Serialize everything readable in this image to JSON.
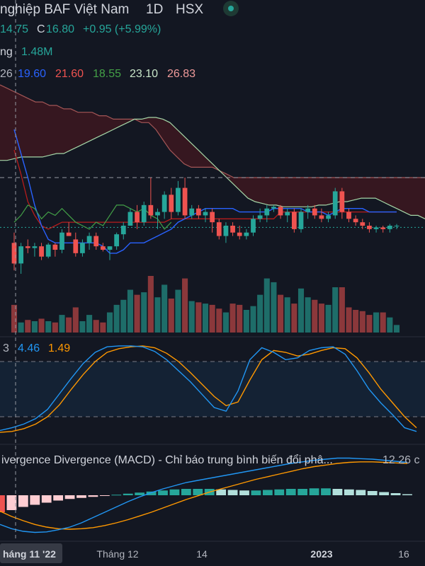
{
  "header": {
    "title": "nghiệp BAF Việt Nam · 1D · HSX",
    "title_parts": [
      "nghiệp BAF Việt Nam",
      "1D",
      "HSX"
    ],
    "status_dot_color": "#26a69a",
    "ohlc": {
      "o_tail": "14.75",
      "c_label": "C",
      "c_value": "16.80",
      "change": "+0.95 (+5.99%)"
    },
    "volume": {
      "label_tail": "ng",
      "value": "1.48M"
    },
    "ichimoku": {
      "first_tail": "26",
      "values": [
        "19.60",
        "21.60",
        "18.55",
        "23.10",
        "26.83"
      ]
    }
  },
  "stoch_legend": {
    "first_tail": "3",
    "k": "4.46",
    "d": "1.49"
  },
  "macd_legend": {
    "title": "ivergence Divergence (MACD) - Chỉ báo trung bình biến đổi phâ...",
    "params": "12 26 c"
  },
  "time_axis": {
    "cursor_label": "háng 11 '22",
    "labels": [
      "Tháng 12",
      "14",
      "2023",
      "16"
    ]
  },
  "colors": {
    "up": "#26a69a",
    "down": "#ef5350",
    "tenkan": "#2962ff",
    "kijun": "#b71c1c",
    "chikou": "#43a047",
    "spanA": "#a5d6a7",
    "spanB": "#ef9a9a"
  },
  "chart_data": [
    {
      "type": "candlestick",
      "title": "BAF · 1D · HSX",
      "x_labels": [
        "Tháng 12",
        "14",
        "2023",
        "16"
      ],
      "ylim": [
        12.0,
        19.0
      ],
      "candles": [
        {
          "o": 14.3,
          "h": 14.6,
          "l": 13.5,
          "c": 13.7
        },
        {
          "o": 13.7,
          "h": 14.3,
          "l": 13.4,
          "c": 14.2
        },
        {
          "o": 14.2,
          "h": 14.4,
          "l": 14.0,
          "c": 14.15
        },
        {
          "o": 14.15,
          "h": 14.3,
          "l": 13.9,
          "c": 14.2
        },
        {
          "o": 14.2,
          "h": 14.3,
          "l": 13.8,
          "c": 13.9
        },
        {
          "o": 13.9,
          "h": 14.3,
          "l": 13.85,
          "c": 14.25
        },
        {
          "o": 14.25,
          "h": 14.3,
          "l": 13.9,
          "c": 14.1
        },
        {
          "o": 14.1,
          "h": 14.7,
          "l": 14.0,
          "c": 14.6
        },
        {
          "o": 14.6,
          "h": 14.9,
          "l": 14.5,
          "c": 14.5
        },
        {
          "o": 14.4,
          "h": 14.6,
          "l": 13.9,
          "c": 14.0
        },
        {
          "o": 14.0,
          "h": 14.4,
          "l": 13.9,
          "c": 14.3
        },
        {
          "o": 14.3,
          "h": 14.6,
          "l": 14.1,
          "c": 14.5
        },
        {
          "o": 14.5,
          "h": 14.6,
          "l": 14.1,
          "c": 14.2
        },
        {
          "o": 14.2,
          "h": 14.3,
          "l": 14.05,
          "c": 14.1
        },
        {
          "o": 14.1,
          "h": 14.2,
          "l": 13.8,
          "c": 14.2
        },
        {
          "o": 14.2,
          "h": 14.6,
          "l": 14.1,
          "c": 14.55
        },
        {
          "o": 14.55,
          "h": 14.9,
          "l": 14.4,
          "c": 14.8
        },
        {
          "o": 14.8,
          "h": 15.3,
          "l": 14.8,
          "c": 15.2
        },
        {
          "o": 15.2,
          "h": 15.4,
          "l": 14.7,
          "c": 14.9
        },
        {
          "o": 14.9,
          "h": 15.5,
          "l": 14.8,
          "c": 15.4
        },
        {
          "o": 15.4,
          "h": 16.2,
          "l": 15.0,
          "c": 15.1
        },
        {
          "o": 15.1,
          "h": 15.3,
          "l": 14.7,
          "c": 15.2
        },
        {
          "o": 15.2,
          "h": 15.8,
          "l": 15.0,
          "c": 15.7
        },
        {
          "o": 15.7,
          "h": 15.9,
          "l": 15.0,
          "c": 15.2
        },
        {
          "o": 15.2,
          "h": 16.1,
          "l": 15.1,
          "c": 15.9
        },
        {
          "o": 15.9,
          "h": 16.2,
          "l": 15.0,
          "c": 15.1
        },
        {
          "o": 15.1,
          "h": 15.4,
          "l": 15.0,
          "c": 15.3
        },
        {
          "o": 15.3,
          "h": 15.4,
          "l": 15.0,
          "c": 15.1
        },
        {
          "o": 15.1,
          "h": 15.3,
          "l": 14.9,
          "c": 15.2
        },
        {
          "o": 15.2,
          "h": 15.3,
          "l": 14.6,
          "c": 14.9
        },
        {
          "o": 14.9,
          "h": 15.0,
          "l": 14.4,
          "c": 14.5
        },
        {
          "o": 14.5,
          "h": 14.9,
          "l": 14.3,
          "c": 14.8
        },
        {
          "o": 14.8,
          "h": 14.9,
          "l": 14.5,
          "c": 14.6
        },
        {
          "o": 14.6,
          "h": 14.8,
          "l": 14.4,
          "c": 14.5
        },
        {
          "o": 14.5,
          "h": 14.7,
          "l": 14.4,
          "c": 14.6
        },
        {
          "o": 14.6,
          "h": 15.1,
          "l": 14.5,
          "c": 15.0
        },
        {
          "o": 15.0,
          "h": 15.3,
          "l": 14.9,
          "c": 15.1
        },
        {
          "o": 15.1,
          "h": 15.4,
          "l": 14.9,
          "c": 15.3
        },
        {
          "o": 15.3,
          "h": 15.4,
          "l": 15.2,
          "c": 15.35
        },
        {
          "o": 15.35,
          "h": 15.4,
          "l": 15.0,
          "c": 15.1
        },
        {
          "o": 15.1,
          "h": 15.3,
          "l": 14.9,
          "c": 15.2
        },
        {
          "o": 15.2,
          "h": 15.3,
          "l": 14.6,
          "c": 14.7
        },
        {
          "o": 14.7,
          "h": 15.3,
          "l": 14.6,
          "c": 15.2
        },
        {
          "o": 15.2,
          "h": 15.4,
          "l": 15.0,
          "c": 15.3
        },
        {
          "o": 15.3,
          "h": 15.4,
          "l": 15.0,
          "c": 15.1
        },
        {
          "o": 15.1,
          "h": 15.3,
          "l": 14.9,
          "c": 15.0
        },
        {
          "o": 15.0,
          "h": 15.2,
          "l": 14.9,
          "c": 15.1
        },
        {
          "o": 15.1,
          "h": 15.9,
          "l": 15.0,
          "c": 15.8
        },
        {
          "o": 15.8,
          "h": 15.9,
          "l": 15.0,
          "c": 15.2
        },
        {
          "o": 15.2,
          "h": 15.3,
          "l": 14.9,
          "c": 15.0
        },
        {
          "o": 15.0,
          "h": 15.1,
          "l": 14.8,
          "c": 14.9
        },
        {
          "o": 14.9,
          "h": 15.0,
          "l": 14.7,
          "c": 14.8
        },
        {
          "o": 14.8,
          "h": 14.9,
          "l": 14.6,
          "c": 14.7
        },
        {
          "o": 14.7,
          "h": 14.8,
          "l": 14.6,
          "c": 14.75
        },
        {
          "o": 14.75,
          "h": 14.8,
          "l": 14.6,
          "c": 14.7
        },
        {
          "o": 14.7,
          "h": 14.85,
          "l": 14.6,
          "c": 14.8
        },
        {
          "o": 14.8,
          "h": 14.85,
          "l": 14.7,
          "c": 14.8
        }
      ],
      "volume": [
        22,
        8,
        10,
        9,
        11,
        9,
        8,
        14,
        12,
        20,
        9,
        14,
        10,
        8,
        16,
        22,
        26,
        34,
        30,
        32,
        45,
        28,
        38,
        27,
        34,
        43,
        25,
        24,
        23,
        22,
        19,
        16,
        23,
        22,
        18,
        21,
        30,
        43,
        40,
        30,
        28,
        23,
        35,
        28,
        26,
        23,
        22,
        36,
        36,
        20,
        18,
        17,
        14,
        16,
        16,
        12,
        6
      ]
    },
    {
      "type": "line",
      "title": "Stochastic",
      "series": [
        {
          "name": "4.46",
          "values": [
            5,
            8,
            12,
            18,
            28,
            45,
            62,
            78,
            90,
            96,
            97,
            97,
            96,
            91,
            82,
            70,
            58,
            44,
            30,
            26,
            48,
            82,
            95,
            90,
            82,
            84,
            92,
            95,
            96,
            88,
            70,
            50,
            35,
            22,
            8,
            4
          ]
        },
        {
          "name": "1.49",
          "values": [
            3,
            4,
            7,
            12,
            20,
            33,
            50,
            66,
            80,
            90,
            94,
            96,
            97,
            95,
            89,
            80,
            68,
            55,
            42,
            32,
            36,
            60,
            82,
            92,
            90,
            86,
            88,
            92,
            95,
            94,
            84,
            68,
            50,
            35,
            20,
            8
          ]
        }
      ],
      "ylim": [
        0,
        100
      ],
      "bands": [
        20,
        80
      ]
    },
    {
      "type": "bar",
      "title": "MACD",
      "series": [
        {
          "name": "histogram",
          "values": [
            -0.32,
            -0.28,
            -0.22,
            -0.18,
            -0.14,
            -0.1,
            -0.07,
            -0.05,
            -0.03,
            -0.01,
            0.01,
            0.03,
            0.05,
            0.07,
            0.09,
            0.11,
            0.12,
            0.12,
            0.12,
            0.11,
            0.1,
            0.09,
            0.09,
            0.1,
            0.11,
            0.12,
            0.12,
            0.13,
            0.13,
            0.12,
            0.11,
            0.1,
            0.08,
            0.06,
            0.04,
            0.02
          ]
        },
        {
          "name": "macd",
          "values": [
            -0.55,
            -0.63,
            -0.68,
            -0.7,
            -0.69,
            -0.65,
            -0.6,
            -0.52,
            -0.42,
            -0.32,
            -0.22,
            -0.12,
            -0.03,
            0.05,
            0.12,
            0.18,
            0.24,
            0.28,
            0.32,
            0.36,
            0.4,
            0.44,
            0.48,
            0.52,
            0.56,
            0.6,
            0.63,
            0.66,
            0.68,
            0.7,
            0.7,
            0.69,
            0.68,
            0.66,
            0.64,
            0.62
          ]
        },
        {
          "name": "signal",
          "values": [
            -0.3,
            -0.4,
            -0.48,
            -0.55,
            -0.6,
            -0.63,
            -0.64,
            -0.63,
            -0.61,
            -0.57,
            -0.52,
            -0.46,
            -0.39,
            -0.32,
            -0.24,
            -0.16,
            -0.08,
            -0.01,
            0.06,
            0.12,
            0.18,
            0.24,
            0.3,
            0.35,
            0.4,
            0.45,
            0.5,
            0.54,
            0.57,
            0.6,
            0.62,
            0.63,
            0.63,
            0.62,
            0.61,
            0.6
          ]
        }
      ],
      "ylim": [
        -0.8,
        0.8
      ]
    }
  ]
}
